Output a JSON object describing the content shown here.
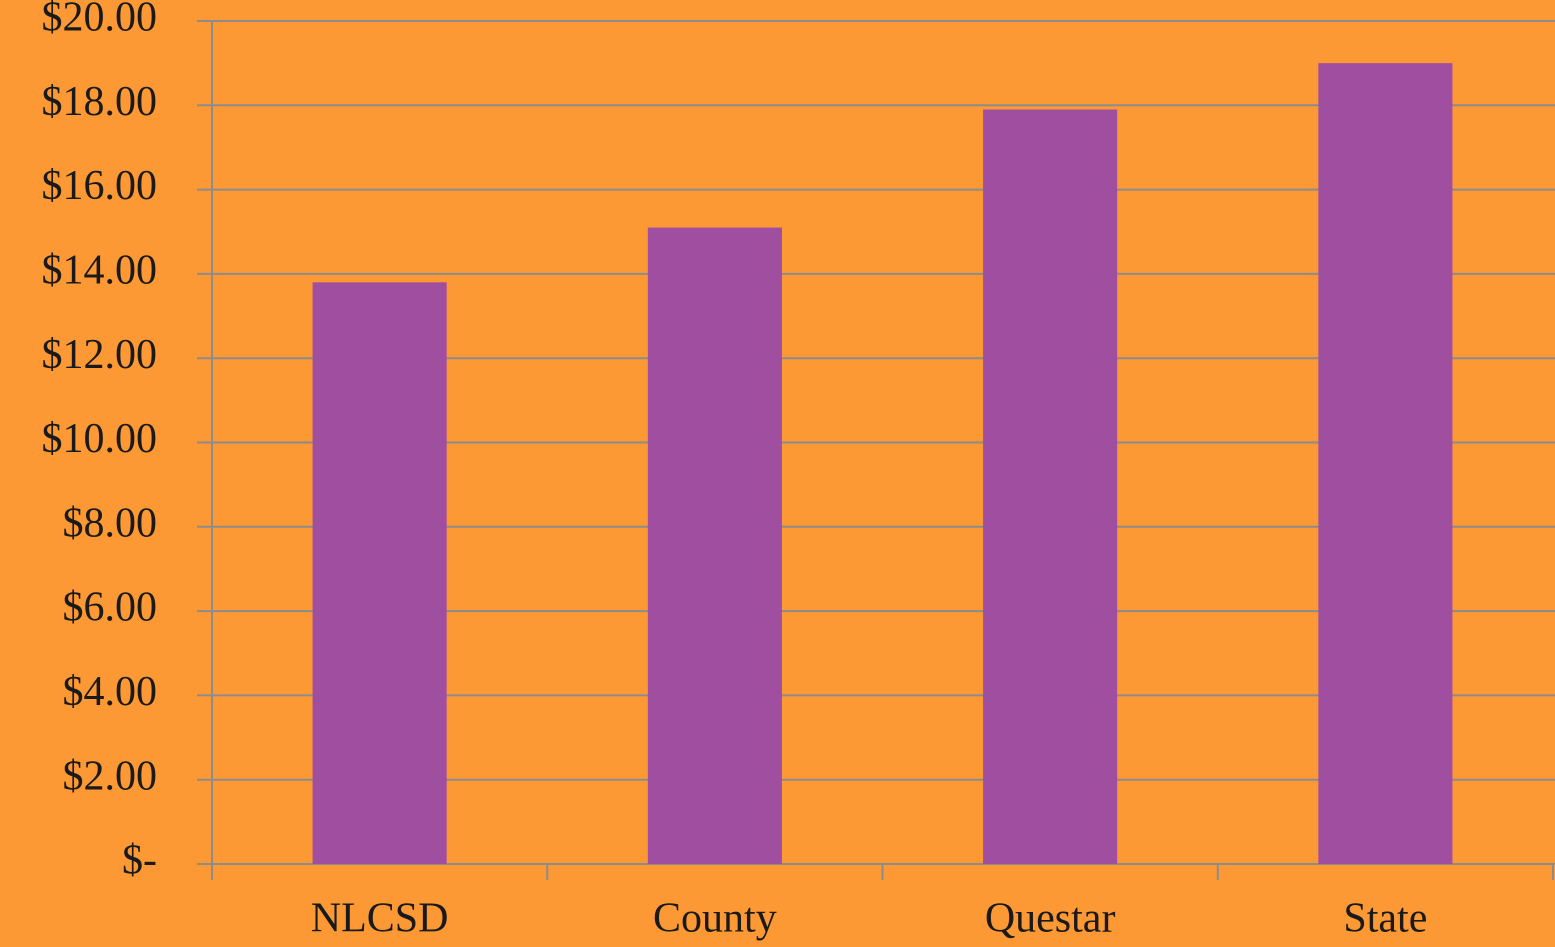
{
  "chart_data": {
    "type": "bar",
    "categories": [
      "NLCSD",
      "County",
      "Questar",
      "State"
    ],
    "values": [
      13.8,
      15.1,
      17.9,
      19.0
    ],
    "color": "#a04fa0",
    "ylim": [
      0,
      20
    ],
    "yticks": [
      {
        "value": 0,
        "label": "$-"
      },
      {
        "value": 2,
        "label": "$2.00"
      },
      {
        "value": 4,
        "label": "$4.00"
      },
      {
        "value": 6,
        "label": "$6.00"
      },
      {
        "value": 8,
        "label": "$8.00"
      },
      {
        "value": 10,
        "label": "$10.00"
      },
      {
        "value": 12,
        "label": "$12.00"
      },
      {
        "value": 14,
        "label": "$14.00"
      },
      {
        "value": 16,
        "label": "$16.00"
      },
      {
        "value": 18,
        "label": "$18.00"
      },
      {
        "value": 20,
        "label": "$20.00"
      }
    ],
    "grid": true
  }
}
